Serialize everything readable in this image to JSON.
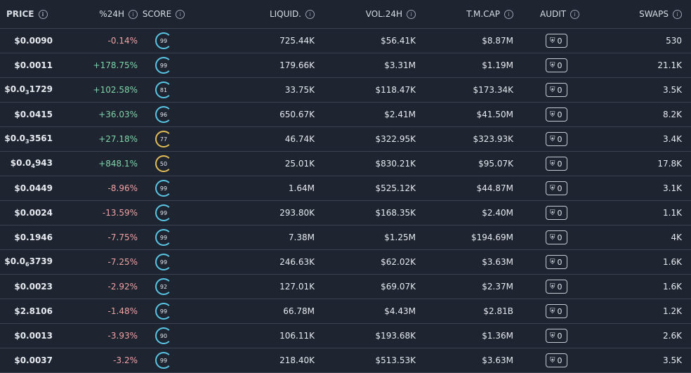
{
  "headers": {
    "price": "PRICE",
    "change": "%24H",
    "score": "SCORE",
    "liquidity": "LIQUID.",
    "volume": "VOL.24H",
    "mcap": "T.M.CAP",
    "audit": "AUDIT",
    "swaps": "SWAPS"
  },
  "info_icon": "info-icon",
  "rows": [
    {
      "price": "$0.0090",
      "price_sub": "",
      "change": "-0.14%",
      "dir": "neg",
      "score": "99",
      "score_level": "high",
      "liquidity": "725.44K",
      "volume": "$56.41K",
      "mcap": "$8.87M",
      "audit": "0",
      "swaps": "530"
    },
    {
      "price": "$0.0011",
      "price_sub": "",
      "change": "+178.75%",
      "dir": "pos",
      "score": "99",
      "score_level": "high",
      "liquidity": "179.66K",
      "volume": "$3.31M",
      "mcap": "$1.19M",
      "audit": "0",
      "swaps": "21.1K"
    },
    {
      "price": "$0.0",
      "price_sub": "3",
      "price_rest": "1729",
      "change": "+102.58%",
      "dir": "pos",
      "score": "81",
      "score_level": "high",
      "liquidity": "33.75K",
      "volume": "$118.47K",
      "mcap": "$173.34K",
      "audit": "0",
      "swaps": "3.5K"
    },
    {
      "price": "$0.0415",
      "price_sub": "",
      "change": "+36.03%",
      "dir": "pos",
      "score": "96",
      "score_level": "high",
      "liquidity": "650.67K",
      "volume": "$2.41M",
      "mcap": "$41.50M",
      "audit": "0",
      "swaps": "8.2K"
    },
    {
      "price": "$0.0",
      "price_sub": "3",
      "price_rest": "3561",
      "change": "+27.18%",
      "dir": "pos",
      "score": "77",
      "score_level": "mid",
      "liquidity": "46.74K",
      "volume": "$322.95K",
      "mcap": "$323.93K",
      "audit": "0",
      "swaps": "3.4K"
    },
    {
      "price": "$0.0",
      "price_sub": "4",
      "price_rest": "943",
      "change": "+848.1%",
      "dir": "pos",
      "score": "50",
      "score_level": "mid",
      "liquidity": "25.01K",
      "volume": "$830.21K",
      "mcap": "$95.07K",
      "audit": "0",
      "swaps": "17.8K"
    },
    {
      "price": "$0.0449",
      "price_sub": "",
      "change": "-8.96%",
      "dir": "neg",
      "score": "99",
      "score_level": "high",
      "liquidity": "1.64M",
      "volume": "$525.12K",
      "mcap": "$44.87M",
      "audit": "0",
      "swaps": "3.1K"
    },
    {
      "price": "$0.0024",
      "price_sub": "",
      "change": "-13.59%",
      "dir": "neg",
      "score": "99",
      "score_level": "high",
      "liquidity": "293.80K",
      "volume": "$168.35K",
      "mcap": "$2.40M",
      "audit": "0",
      "swaps": "1.1K"
    },
    {
      "price": "$0.1946",
      "price_sub": "",
      "change": "-7.75%",
      "dir": "neg",
      "score": "99",
      "score_level": "high",
      "liquidity": "7.38M",
      "volume": "$1.25M",
      "mcap": "$194.69M",
      "audit": "0",
      "swaps": "4K"
    },
    {
      "price": "$0.0",
      "price_sub": "6",
      "price_rest": "3739",
      "change": "-7.25%",
      "dir": "neg",
      "score": "99",
      "score_level": "high",
      "liquidity": "246.63K",
      "volume": "$62.02K",
      "mcap": "$3.63M",
      "audit": "0",
      "swaps": "1.6K"
    },
    {
      "price": "$0.0023",
      "price_sub": "",
      "change": "-2.92%",
      "dir": "neg",
      "score": "92",
      "score_level": "high",
      "liquidity": "127.01K",
      "volume": "$69.07K",
      "mcap": "$2.37M",
      "audit": "0",
      "swaps": "1.6K"
    },
    {
      "price": "$2.8106",
      "price_sub": "",
      "change": "-1.48%",
      "dir": "neg",
      "score": "99",
      "score_level": "high",
      "liquidity": "66.78M",
      "volume": "$4.43M",
      "mcap": "$2.81B",
      "audit": "0",
      "swaps": "1.2K"
    },
    {
      "price": "$0.0013",
      "price_sub": "",
      "change": "-3.93%",
      "dir": "neg",
      "score": "90",
      "score_level": "high",
      "liquidity": "106.11K",
      "volume": "$193.68K",
      "mcap": "$1.36M",
      "audit": "0",
      "swaps": "2.6K"
    },
    {
      "price": "$0.0037",
      "price_sub": "",
      "change": "-3.2%",
      "dir": "neg",
      "score": "99",
      "score_level": "high",
      "liquidity": "218.40K",
      "volume": "$513.53K",
      "mcap": "$3.63M",
      "audit": "0",
      "swaps": "3.5K"
    }
  ]
}
